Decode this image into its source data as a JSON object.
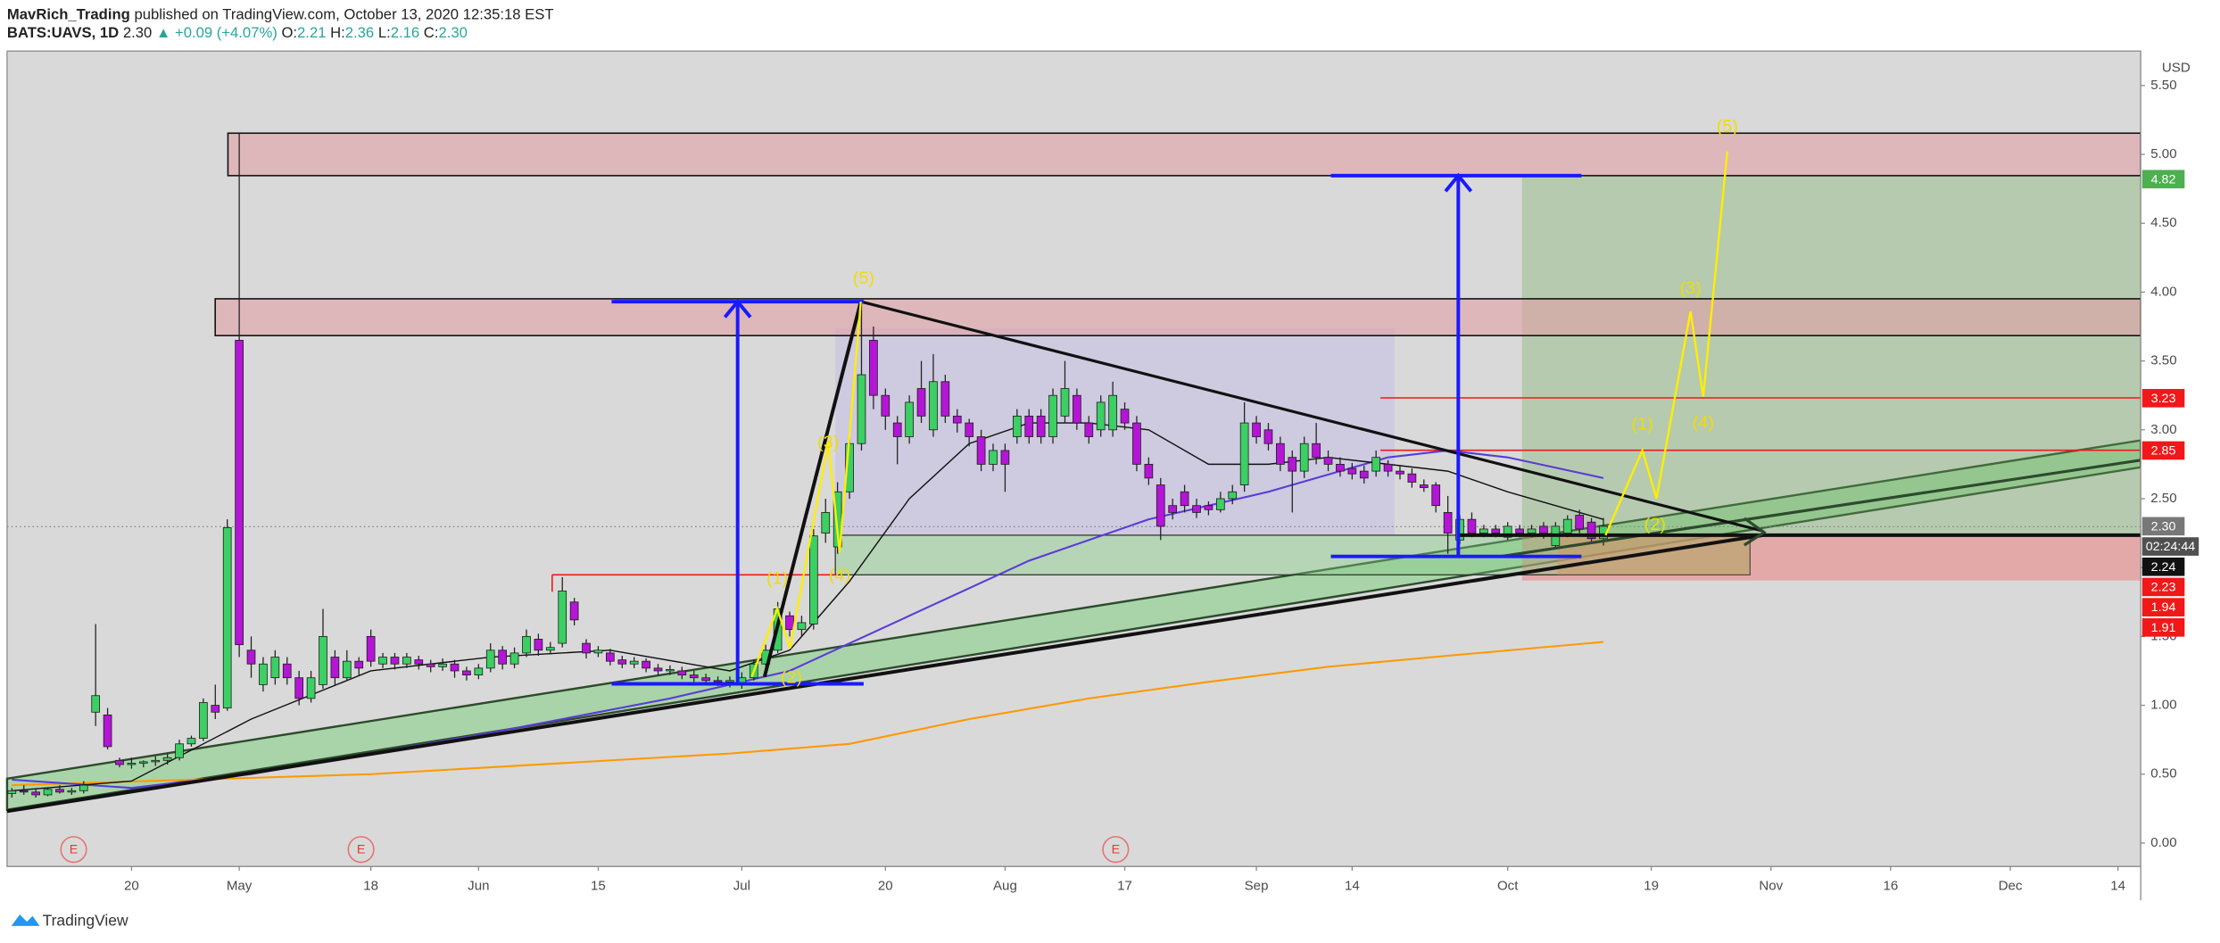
{
  "header": {
    "author": "MavRich_Trading",
    "published": "published on TradingView.com, October 13, 2020 12:35:18 EST",
    "symbol": "BATS:UAVS, 1D",
    "last": "2.30",
    "change": "▲ +0.09 (+4.07%)",
    "ohlc": [
      {
        "label": "O:",
        "value": "2.21"
      },
      {
        "label": "H:",
        "value": "2.36"
      },
      {
        "label": "L:",
        "value": "2.16"
      },
      {
        "label": "C:",
        "value": "2.30"
      }
    ]
  },
  "footer": "TradingView",
  "chart_data": {
    "type": "candlestick",
    "currency": "USD",
    "up_color": "#3ccf63",
    "down_color": "#b415d6",
    "xlim": [
      -0.4,
      177.9
    ],
    "ylim": [
      -0.17,
      5.75
    ],
    "xticks": [
      {
        "value": 10,
        "label": "20"
      },
      {
        "value": 19,
        "label": "May"
      },
      {
        "value": 30,
        "label": "18"
      },
      {
        "value": 39,
        "label": "Jun"
      },
      {
        "value": 49,
        "label": "15"
      },
      {
        "value": 61,
        "label": "Jul"
      },
      {
        "value": 73,
        "label": "20"
      },
      {
        "value": 83,
        "label": "Aug"
      },
      {
        "value": 93,
        "label": "17"
      },
      {
        "value": 104,
        "label": "Sep"
      },
      {
        "value": 112,
        "label": "14"
      },
      {
        "value": 125,
        "label": "Oct"
      },
      {
        "value": 137,
        "label": "19"
      },
      {
        "value": 147,
        "label": "Nov"
      },
      {
        "value": 157,
        "label": "16"
      },
      {
        "value": 167,
        "label": "Dec"
      },
      {
        "value": 176,
        "label": "14"
      }
    ],
    "yticks": [
      {
        "value": 0,
        "label": "0.00"
      },
      {
        "value": 0.5,
        "label": "0.50"
      },
      {
        "value": 1,
        "label": "1.00"
      },
      {
        "value": 1.5,
        "label": "1.50"
      },
      {
        "value": 2,
        "label": "2.00"
      },
      {
        "value": 2.5,
        "label": "2.50"
      },
      {
        "value": 3,
        "label": "3.00"
      },
      {
        "value": 3.5,
        "label": "3.50"
      },
      {
        "value": 4,
        "label": "4.00"
      },
      {
        "value": 4.5,
        "label": "4.50"
      },
      {
        "value": 5,
        "label": "5.00"
      },
      {
        "value": 5.5,
        "label": "5.50"
      }
    ],
    "grid": false,
    "open": [
      0.36,
      0.38,
      0.37,
      0.35,
      0.39,
      0.37,
      0.38,
      0.95,
      0.93,
      0.6,
      0.57,
      0.58,
      0.59,
      0.6,
      0.62,
      0.72,
      0.76,
      1,
      0.98,
      3.65,
      1.4,
      1.15,
      1.2,
      1.3,
      1.2,
      1.05,
      1.15,
      1.35,
      1.2,
      1.32,
      1.5,
      1.3,
      1.35,
      1.3,
      1.33,
      1.3,
      1.28,
      1.3,
      1.25,
      1.22,
      1.27,
      1.4,
      1.3,
      1.38,
      1.48,
      1.4,
      1.45,
      1.75,
      1.45,
      1.38,
      1.38,
      1.33,
      1.3,
      1.32,
      1.27,
      1.25,
      1.25,
      1.22,
      1.2,
      1.18,
      1.17,
      1.15,
      1.2,
      1.3,
      1.4,
      1.65,
      1.55,
      1.59,
      2.25,
      2.15,
      2.55,
      2.9,
      3.65,
      3.25,
      3.05,
      2.95,
      3.3,
      3,
      3.35,
      3.1,
      3.05,
      2.95,
      2.75,
      2.85,
      2.95,
      3.1,
      3.1,
      2.95,
      3.1,
      3.25,
      3.05,
      3,
      3,
      3.15,
      3.05,
      2.75,
      2.6,
      2.45,
      2.55,
      2.45,
      2.45,
      2.42,
      2.5,
      2.6,
      3.05,
      3,
      2.9,
      2.8,
      2.7,
      2.9,
      2.8,
      2.75,
      2.72,
      2.7,
      2.7,
      2.75,
      2.7,
      2.68,
      2.6,
      2.6,
      2.4,
      2.2,
      2.35,
      2.25,
      2.28,
      2.22,
      2.28,
      2.25,
      2.3,
      2.16,
      2.25,
      2.38,
      2.33,
      2.21
    ],
    "high": [
      0.4,
      0.42,
      0.39,
      0.4,
      0.42,
      0.4,
      0.45,
      1.59,
      0.98,
      0.62,
      0.62,
      0.6,
      0.63,
      0.65,
      0.75,
      0.78,
      1.05,
      1.15,
      2.35,
      5.15,
      1.5,
      1.35,
      1.4,
      1.35,
      1.25,
      1.25,
      1.7,
      1.4,
      1.4,
      1.35,
      1.55,
      1.38,
      1.38,
      1.38,
      1.36,
      1.33,
      1.34,
      1.33,
      1.28,
      1.3,
      1.45,
      1.43,
      1.42,
      1.55,
      1.52,
      1.46,
      1.93,
      1.78,
      1.48,
      1.43,
      1.41,
      1.36,
      1.35,
      1.34,
      1.3,
      1.29,
      1.28,
      1.25,
      1.23,
      1.21,
      1.21,
      1.24,
      1.33,
      1.44,
      1.75,
      1.68,
      1.65,
      2.28,
      2.5,
      2.62,
      3,
      3.93,
      3.75,
      3.3,
      3.1,
      3.25,
      3.5,
      3.55,
      3.4,
      3.15,
      3.08,
      3,
      2.9,
      2.9,
      3.15,
      3.15,
      3.15,
      3.3,
      3.5,
      3.3,
      3.1,
      3.25,
      3.35,
      3.2,
      3.1,
      2.8,
      2.65,
      2.5,
      2.6,
      2.5,
      2.48,
      2.55,
      2.6,
      3.2,
      3.1,
      3.05,
      2.95,
      2.85,
      2.95,
      3.05,
      2.85,
      2.8,
      2.76,
      2.74,
      2.85,
      2.78,
      2.74,
      2.72,
      2.64,
      2.62,
      2.52,
      2.38,
      2.4,
      2.31,
      2.31,
      2.33,
      2.31,
      2.31,
      2.33,
      2.33,
      2.38,
      2.42,
      2.36,
      2.36
    ],
    "low": [
      0.33,
      0.35,
      0.33,
      0.34,
      0.36,
      0.35,
      0.36,
      0.85,
      0.68,
      0.55,
      0.54,
      0.55,
      0.56,
      0.57,
      0.6,
      0.7,
      0.74,
      0.9,
      0.96,
      1.35,
      1.2,
      1.1,
      1.15,
      1.15,
      1,
      1.02,
      1.12,
      1.15,
      1.18,
      1.22,
      1.28,
      1.27,
      1.26,
      1.27,
      1.26,
      1.24,
      1.25,
      1.2,
      1.18,
      1.19,
      1.24,
      1.26,
      1.27,
      1.35,
      1.36,
      1.37,
      1.42,
      1.58,
      1.34,
      1.35,
      1.29,
      1.27,
      1.27,
      1.24,
      1.22,
      1.22,
      1.19,
      1.17,
      1.15,
      1.14,
      1.13,
      1.12,
      1.18,
      1.27,
      1.38,
      1.5,
      1.5,
      1.55,
      2.18,
      2.1,
      2.5,
      2.85,
      3.15,
      3,
      2.75,
      2.9,
      3.05,
      2.95,
      3.05,
      2.98,
      2.88,
      2.7,
      2.7,
      2.55,
      2.9,
      2.9,
      2.9,
      2.9,
      3.05,
      3,
      2.9,
      2.95,
      2.95,
      3,
      2.7,
      2.6,
      2.2,
      2.35,
      2.4,
      2.36,
      2.38,
      2.4,
      2.46,
      2.55,
      2.9,
      2.85,
      2.7,
      2.4,
      2.65,
      2.75,
      2.7,
      2.66,
      2.64,
      2.61,
      2.66,
      2.66,
      2.64,
      2.58,
      2.55,
      2.4,
      2.1,
      2.17,
      2.22,
      2.22,
      2.22,
      2.2,
      2.22,
      2.22,
      2.21,
      2.14,
      2.22,
      2.25,
      2.18,
      2.16
    ],
    "close": [
      0.38,
      0.37,
      0.35,
      0.39,
      0.37,
      0.38,
      0.42,
      1.07,
      0.7,
      0.57,
      0.58,
      0.59,
      0.6,
      0.62,
      0.72,
      0.76,
      1.02,
      0.95,
      2.29,
      1.44,
      1.3,
      1.3,
      1.35,
      1.2,
      1.05,
      1.2,
      1.5,
      1.2,
      1.32,
      1.27,
      1.32,
      1.35,
      1.3,
      1.35,
      1.3,
      1.28,
      1.3,
      1.25,
      1.22,
      1.27,
      1.4,
      1.3,
      1.38,
      1.5,
      1.4,
      1.42,
      1.83,
      1.62,
      1.38,
      1.4,
      1.32,
      1.3,
      1.32,
      1.27,
      1.25,
      1.26,
      1.22,
      1.2,
      1.18,
      1.17,
      1.18,
      1.2,
      1.3,
      1.4,
      1.7,
      1.55,
      1.6,
      2.23,
      2.4,
      2.55,
      2.9,
      3.4,
      3.25,
      3.1,
      2.95,
      3.2,
      3.1,
      3.35,
      3.1,
      3.05,
      2.95,
      2.75,
      2.85,
      2.75,
      3.1,
      2.95,
      2.95,
      3.25,
      3.3,
      3.05,
      2.95,
      3.2,
      3.25,
      3.05,
      2.75,
      2.65,
      2.3,
      2.4,
      2.45,
      2.4,
      2.42,
      2.5,
      2.55,
      3.05,
      2.95,
      2.9,
      2.75,
      2.7,
      2.9,
      2.8,
      2.75,
      2.7,
      2.68,
      2.65,
      2.8,
      2.7,
      2.68,
      2.62,
      2.58,
      2.45,
      2.25,
      2.35,
      2.25,
      2.28,
      2.25,
      2.3,
      2.25,
      2.28,
      2.25,
      2.3,
      2.35,
      2.28,
      2.21,
      2.3
    ],
    "overlays": [
      {
        "color": "#ff9800",
        "x": [
          0,
          30,
          60,
          70,
          80,
          90,
          100,
          110,
          120,
          133
        ],
        "values": [
          0.42,
          0.5,
          0.65,
          0.72,
          0.9,
          1.05,
          1.17,
          1.28,
          1.36,
          1.46
        ]
      },
      {
        "color": "#5a3bd6",
        "x": [
          0,
          10,
          20,
          40,
          55,
          65,
          75,
          85,
          95,
          105,
          115,
          120,
          125,
          133
        ],
        "values": [
          0.46,
          0.4,
          0.5,
          0.8,
          1.05,
          1.25,
          1.65,
          2.05,
          2.35,
          2.55,
          2.8,
          2.85,
          2.8,
          2.65
        ]
      },
      {
        "color": "#111111",
        "x": [
          0,
          10,
          20,
          30,
          40,
          50,
          60,
          65,
          70,
          75,
          80,
          85,
          90,
          95,
          100,
          105,
          110,
          115,
          120,
          125,
          133
        ],
        "values": [
          0.38,
          0.45,
          0.9,
          1.25,
          1.35,
          1.4,
          1.25,
          1.4,
          1.9,
          2.5,
          2.9,
          3.05,
          3.05,
          3,
          2.75,
          2.75,
          2.8,
          2.75,
          2.7,
          2.55,
          2.35
        ]
      }
    ],
    "price_tags": [
      {
        "value": 4.82,
        "color": "#4caf50"
      },
      {
        "value": 3.23,
        "color": "#f01818"
      },
      {
        "value": 2.85,
        "color": "#f01818"
      },
      {
        "value": 2.3,
        "label": "2.30",
        "color": "#787878",
        "countdown": "02:24:44"
      },
      {
        "value": 2.24,
        "color": "#111111"
      },
      {
        "value": 2.23,
        "color": "#f01818"
      },
      {
        "value": 1.94,
        "color": "#f01818"
      },
      {
        "value": 1.91,
        "color": "#f01818"
      }
    ],
    "wave_labels": [
      "(5)",
      "(3)",
      "(1)",
      "(4)",
      "(2)",
      "(5)",
      "(3)",
      "(1)",
      "(4)",
      "(2)"
    ],
    "earnings": [
      "E",
      "E",
      "E"
    ]
  }
}
